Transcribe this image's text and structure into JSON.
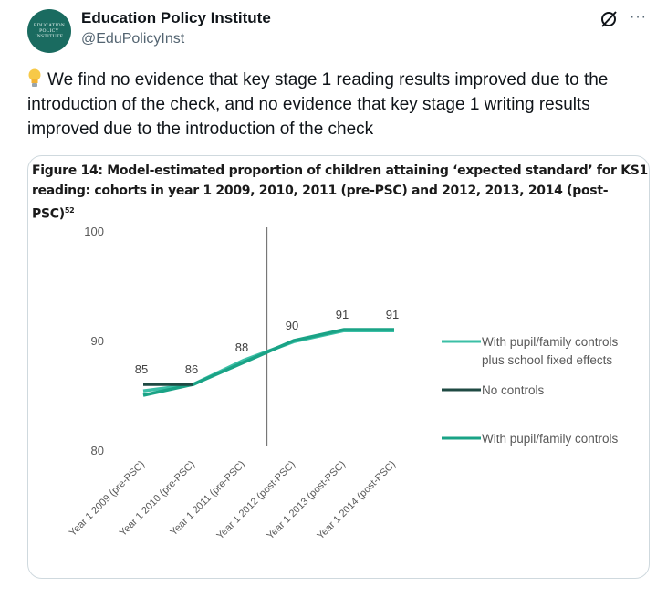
{
  "tweet": {
    "author_name": "Education Policy Institute",
    "handle": "@EduPolicyInst",
    "avatar_text": [
      "EDUCATION",
      "POLICY",
      "INSTITUTE"
    ],
    "more_label": "···",
    "body": "We find no evidence that key stage 1 reading results improved due to the introduction of the check, and no evidence that key stage 1 writing results improved due to the introduction of the check"
  },
  "figure": {
    "title": "Figure 14: Model-estimated proportion of children attaining ‘expected standard’ for KS1 reading: cohorts in year 1 2009, 2010, 2011 (pre-PSC) and 2012, 2013, 2014 (post-PSC)",
    "footnote_mark": "52"
  },
  "chart_data": {
    "type": "line",
    "categories": [
      "Year 1 2009 (pre-PSC)",
      "Year 1 2010 (pre-PSC)",
      "Year 1 2011 (pre-PSC)",
      "Year 1 2012 (post-PSC)",
      "Year 1 2013 (post-PSC)",
      "Year 1 2014 (post-PSC)"
    ],
    "ylim": [
      80,
      100
    ],
    "yticks": [
      80,
      90,
      100
    ],
    "data_labels": [
      85,
      86,
      88,
      90,
      91,
      91
    ],
    "divider_between": [
      "Year 1 2011 (pre-PSC)",
      "Year 1 2012 (post-PSC)"
    ],
    "legend_position": "right",
    "series": [
      {
        "name": "With pupil/family controls plus school fixed effects",
        "color": "#3bbfa6",
        "values": [
          85.4,
          86.0,
          88.2,
          89.9,
          90.9,
          90.9
        ]
      },
      {
        "name": "No controls",
        "color": "#1f4a43",
        "values": [
          86.0,
          86.0,
          null,
          null,
          null,
          null
        ]
      },
      {
        "name": "With pupil/family controls",
        "color": "#1aa386",
        "values": [
          85.0,
          86.0,
          88.0,
          90.0,
          91.0,
          91.0
        ]
      }
    ]
  }
}
